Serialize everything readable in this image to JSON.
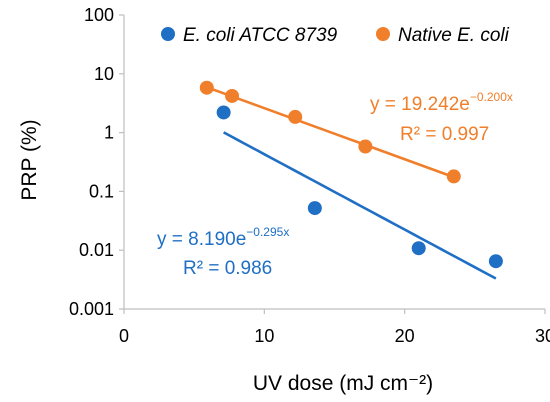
{
  "chart_data": {
    "type": "scatter",
    "xlabel": "UV dose (mJ cm⁻²)",
    "ylabel": "PRP (%)",
    "xlim": [
      0,
      30
    ],
    "ylim": [
      0.001,
      100
    ],
    "yscale": "log",
    "xticks": [
      "0",
      "10",
      "20",
      "30"
    ],
    "yticks": [
      "0.001",
      "0.01",
      "0.1",
      "1",
      "10",
      "100"
    ],
    "grid": false,
    "legend_position": "top",
    "series": [
      {
        "name": "E. coli ATCC 8739",
        "color": "#1f6fc5",
        "points": [
          {
            "x": 7.1,
            "y": 2.2
          },
          {
            "x": 13.6,
            "y": 0.052
          },
          {
            "x": 21.0,
            "y": 0.0108
          },
          {
            "x": 26.5,
            "y": 0.0065
          }
        ],
        "trendline": {
          "a": 8.19,
          "b": -0.295,
          "x_range": [
            7.1,
            26.5
          ]
        },
        "equation": "y = 8.190e",
        "equation_exp": "−0.295x",
        "r2": "R² = 0.986"
      },
      {
        "name": "Native E. coli",
        "color": "#f07f2b",
        "points": [
          {
            "x": 5.9,
            "y": 5.8
          },
          {
            "x": 7.7,
            "y": 4.2
          },
          {
            "x": 12.2,
            "y": 1.85
          },
          {
            "x": 17.2,
            "y": 0.58
          },
          {
            "x": 23.5,
            "y": 0.18
          }
        ],
        "trendline": {
          "a": 19.242,
          "b": -0.2,
          "x_range": [
            5.9,
            23.5
          ]
        },
        "equation": "y = 19.242e",
        "equation_exp": "−0.200x",
        "r2": "R² = 0.997"
      }
    ]
  }
}
